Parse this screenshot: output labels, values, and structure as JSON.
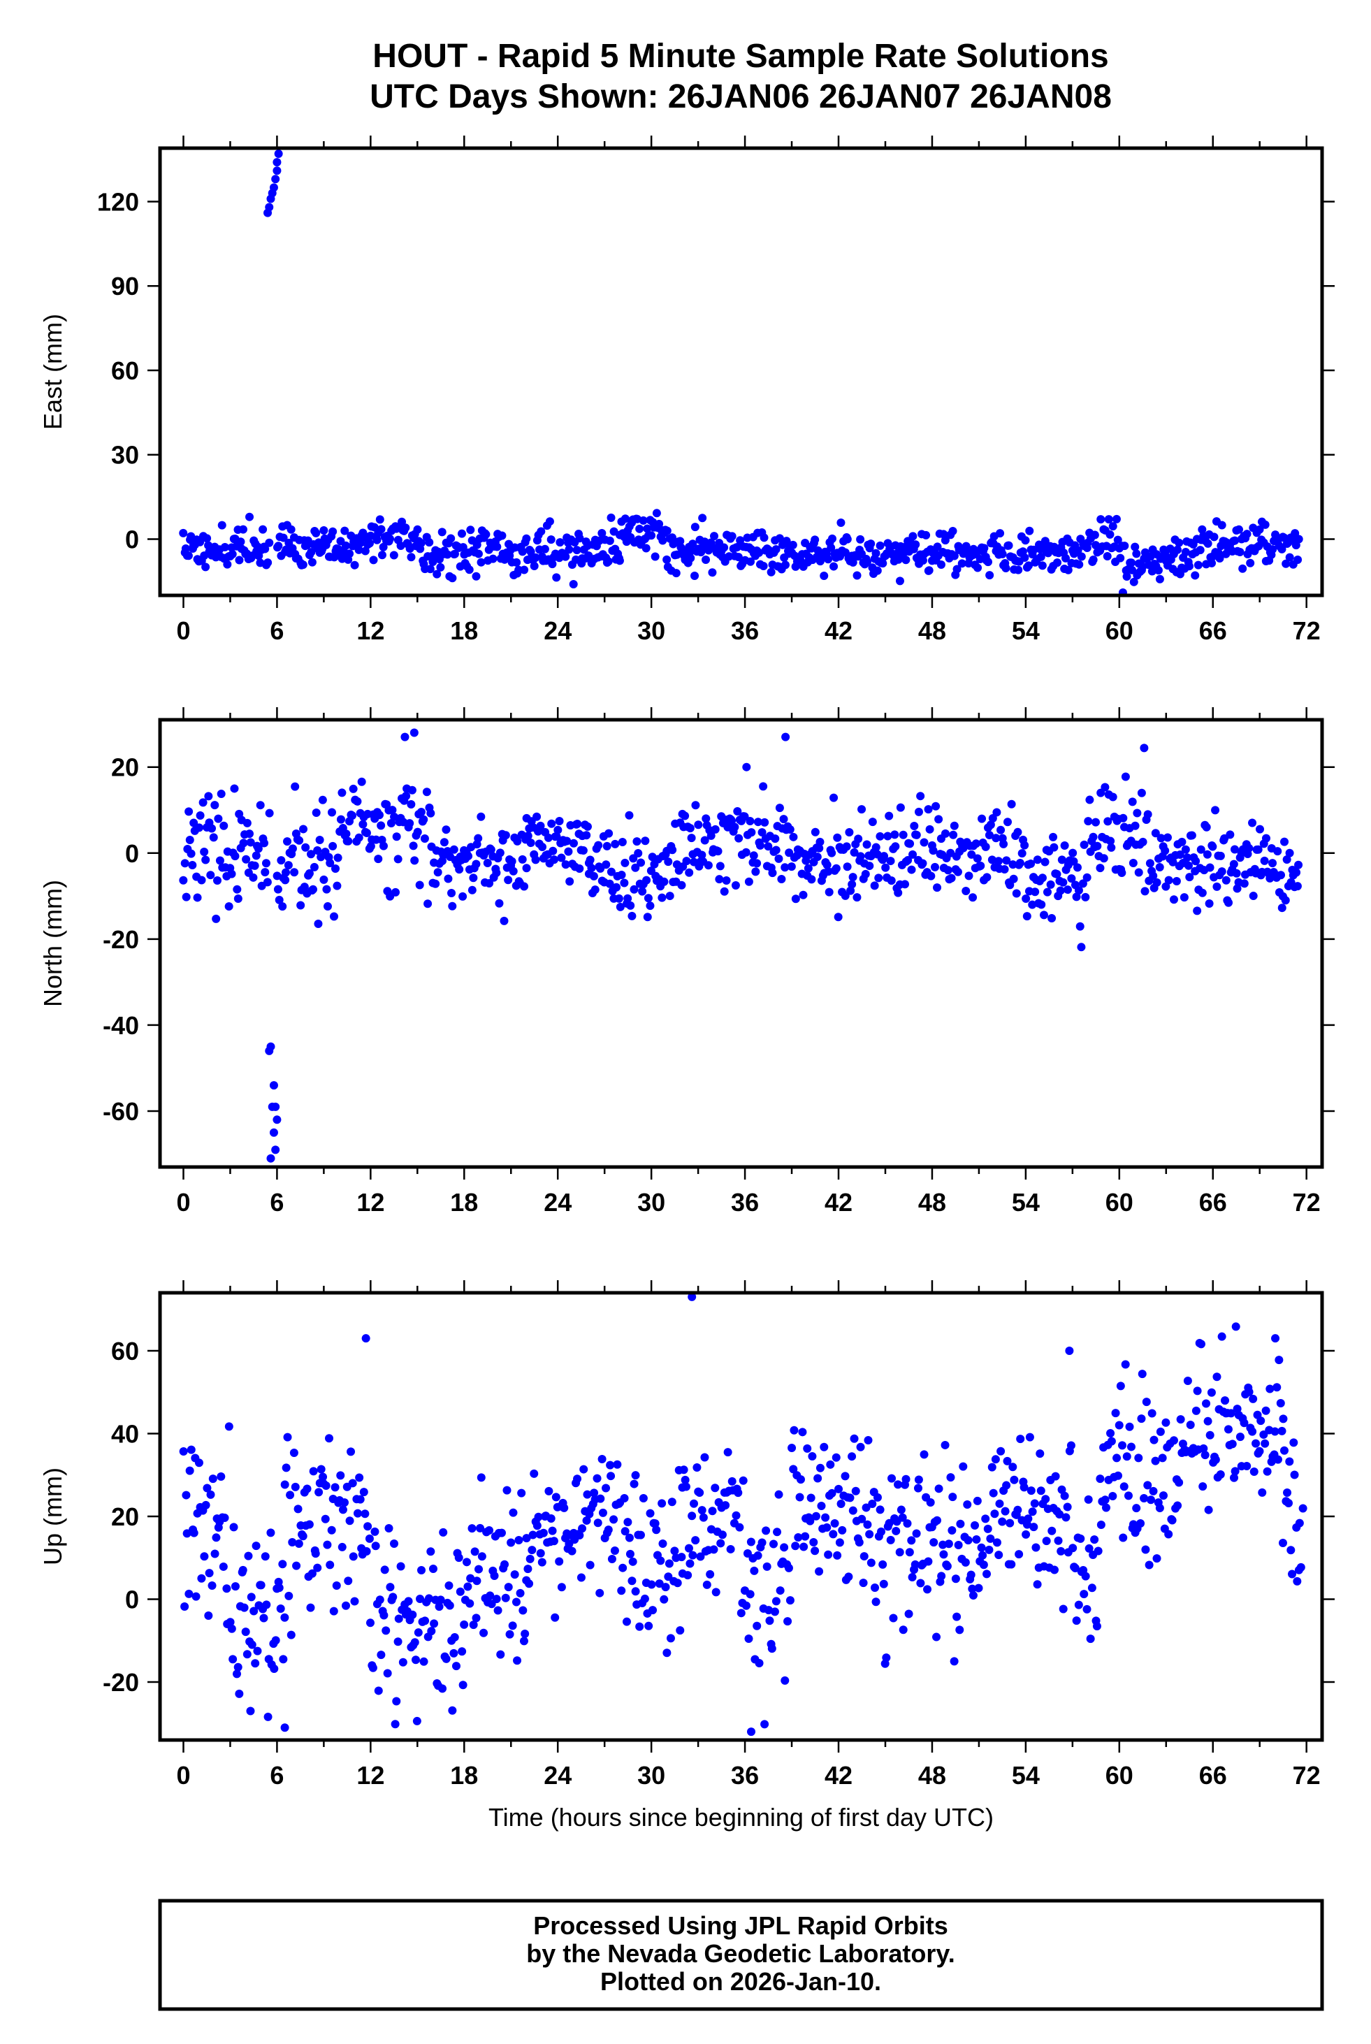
{
  "title": {
    "line1": "HOUT - Rapid 5 Minute Sample Rate Solutions",
    "line2": "UTC Days Shown:  26JAN06 26JAN07 26JAN08"
  },
  "credit": {
    "line1": "Processed Using JPL Rapid Orbits",
    "line2": "by the Nevada Geodetic Laboratory.",
    "line3": "Plotted on 2026-Jan-10."
  },
  "colors": {
    "points": "#0000ff",
    "frame": "#000000"
  },
  "chart_data": [
    {
      "type": "scatter",
      "id": "east",
      "ylabel": "East (mm)",
      "xlabel": "",
      "xlim": [
        -1.5,
        73
      ],
      "ylim": [
        -20,
        139
      ],
      "xticks": [
        0,
        6,
        12,
        18,
        24,
        30,
        36,
        42,
        48,
        54,
        60,
        66,
        72
      ],
      "yticks": [
        0,
        30,
        60,
        90,
        120
      ],
      "outliers": [
        [
          5.4,
          116
        ],
        [
          5.5,
          118
        ],
        [
          5.6,
          121
        ],
        [
          5.7,
          123
        ],
        [
          5.8,
          125
        ],
        [
          5.9,
          128
        ],
        [
          6.0,
          131
        ],
        [
          6.0,
          134
        ],
        [
          6.1,
          137
        ]
      ],
      "segments": [
        {
          "from": 0,
          "to": 5.5,
          "mean": -3,
          "noise": 4
        },
        {
          "from": 6,
          "to": 12,
          "mean": -3,
          "noise": 4
        },
        {
          "from": 12,
          "to": 15,
          "mean": 1,
          "noise": 4
        },
        {
          "from": 15,
          "to": 28,
          "mean": -4,
          "noise": 4
        },
        {
          "from": 28,
          "to": 31,
          "mean": 2,
          "noise": 4
        },
        {
          "from": 31,
          "to": 38,
          "mean": -3,
          "noise": 4
        },
        {
          "from": 38,
          "to": 58,
          "mean": -5,
          "noise": 3.5
        },
        {
          "from": 58,
          "to": 60,
          "mean": 0,
          "noise": 4
        },
        {
          "from": 60,
          "to": 65,
          "mean": -7,
          "noise": 4
        },
        {
          "from": 65,
          "to": 71.5,
          "mean": -2,
          "noise": 4
        }
      ],
      "seed": 11
    },
    {
      "type": "scatter",
      "id": "north",
      "ylabel": "North (mm)",
      "xlabel": "",
      "xlim": [
        -1.5,
        73
      ],
      "ylim": [
        -73,
        31
      ],
      "xticks": [
        0,
        6,
        12,
        18,
        24,
        30,
        36,
        42,
        48,
        54,
        60,
        66,
        72
      ],
      "yticks": [
        -60,
        -40,
        -20,
        0,
        20
      ],
      "outliers": [
        [
          5.5,
          -46
        ],
        [
          5.6,
          -45
        ],
        [
          5.8,
          -54
        ],
        [
          5.9,
          -59
        ],
        [
          6.0,
          -62
        ],
        [
          5.7,
          -59
        ],
        [
          5.8,
          -65
        ],
        [
          5.9,
          -69
        ],
        [
          5.6,
          -71
        ],
        [
          14.2,
          27
        ],
        [
          14.8,
          28
        ],
        [
          38.6,
          27
        ],
        [
          36.1,
          20
        ]
      ],
      "segments": [
        {
          "from": 0,
          "to": 5.5,
          "mean": 0,
          "noise": 6
        },
        {
          "from": 6,
          "to": 10,
          "mean": -3,
          "noise": 6
        },
        {
          "from": 10,
          "to": 16,
          "mean": 6,
          "noise": 6
        },
        {
          "from": 16,
          "to": 22,
          "mean": -2,
          "noise": 5
        },
        {
          "from": 22,
          "to": 26,
          "mean": 3,
          "noise": 4
        },
        {
          "from": 26,
          "to": 32,
          "mean": -5,
          "noise": 5
        },
        {
          "from": 32,
          "to": 39,
          "mean": 3,
          "noise": 6
        },
        {
          "from": 39,
          "to": 46,
          "mean": -3,
          "noise": 5
        },
        {
          "from": 46,
          "to": 54,
          "mean": 0,
          "noise": 5
        },
        {
          "from": 54,
          "to": 58,
          "mean": -6,
          "noise": 5
        },
        {
          "from": 58,
          "to": 62,
          "mean": 5,
          "noise": 6
        },
        {
          "from": 62,
          "to": 71.5,
          "mean": -3,
          "noise": 5
        }
      ],
      "seed": 23
    },
    {
      "type": "scatter",
      "id": "up",
      "ylabel": "Up (mm)",
      "xlabel": "Time (hours since beginning of first day UTC)",
      "xlim": [
        -1.5,
        73
      ],
      "ylim": [
        -34,
        74
      ],
      "xticks": [
        0,
        6,
        12,
        18,
        24,
        30,
        36,
        42,
        48,
        54,
        60,
        66,
        72
      ],
      "yticks": [
        -20,
        0,
        20,
        40,
        60
      ],
      "outliers": [
        [
          11.7,
          63
        ],
        [
          32.6,
          73
        ],
        [
          36.4,
          -32
        ],
        [
          6.5,
          -31
        ],
        [
          4.3,
          -27
        ],
        [
          70.0,
          63
        ],
        [
          56.8,
          60
        ]
      ],
      "segments": [
        {
          "from": 0,
          "to": 3,
          "mean": 15,
          "noise": 11
        },
        {
          "from": 3,
          "to": 6.5,
          "mean": -2,
          "noise": 12
        },
        {
          "from": 6.5,
          "to": 12,
          "mean": 20,
          "noise": 12
        },
        {
          "from": 12,
          "to": 18,
          "mean": -5,
          "noise": 12
        },
        {
          "from": 18,
          "to": 22,
          "mean": 8,
          "noise": 10
        },
        {
          "from": 22,
          "to": 29,
          "mean": 18,
          "noise": 8
        },
        {
          "from": 29,
          "to": 32,
          "mean": 8,
          "noise": 10
        },
        {
          "from": 32,
          "to": 36,
          "mean": 22,
          "noise": 12
        },
        {
          "from": 36,
          "to": 39,
          "mean": 5,
          "noise": 12
        },
        {
          "from": 39,
          "to": 44,
          "mean": 22,
          "noise": 10
        },
        {
          "from": 44,
          "to": 52,
          "mean": 12,
          "noise": 11
        },
        {
          "from": 52,
          "to": 57,
          "mean": 20,
          "noise": 10
        },
        {
          "from": 57,
          "to": 59,
          "mean": 5,
          "noise": 10
        },
        {
          "from": 59,
          "to": 64,
          "mean": 30,
          "noise": 10
        },
        {
          "from": 64,
          "to": 70.5,
          "mean": 42,
          "noise": 9
        },
        {
          "from": 70.5,
          "to": 71.8,
          "mean": 15,
          "noise": 13
        }
      ],
      "seed": 37
    }
  ]
}
